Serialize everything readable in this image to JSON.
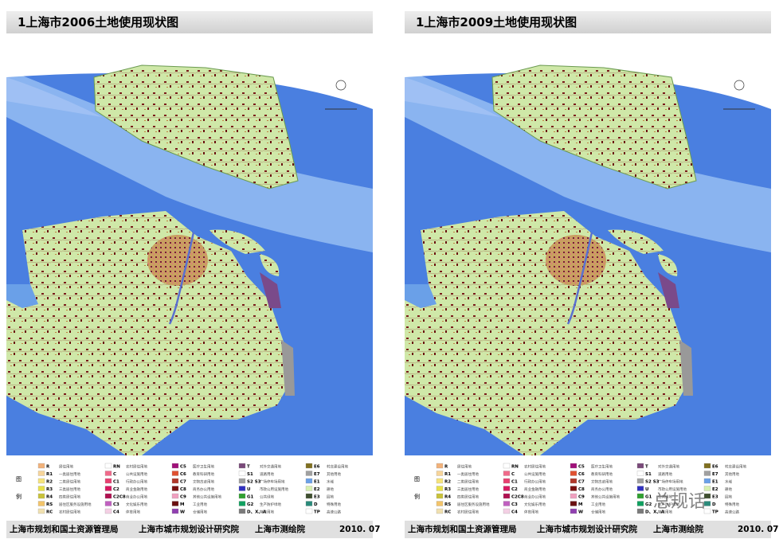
{
  "panels": [
    {
      "title": "1上海市2006土地使用现状图"
    },
    {
      "title": "1上海市2009土地使用现状图"
    }
  ],
  "legend": {
    "heading": [
      "图",
      "例"
    ],
    "items": [
      {
        "code": "R",
        "label": "居住用地",
        "color": "#f2b27a"
      },
      {
        "code": "R1",
        "label": "一类居住用地",
        "color": "#f7d59a"
      },
      {
        "code": "R2",
        "label": "二类居住用地",
        "color": "#f5e37a"
      },
      {
        "code": "R3",
        "label": "三类居住用地",
        "color": "#e8e04a"
      },
      {
        "code": "R4",
        "label": "四类居住用地",
        "color": "#c9c23a"
      },
      {
        "code": "RS",
        "label": "居住区服务设施用地",
        "color": "#f3c46a"
      },
      {
        "code": "RC",
        "label": "农村居住用地",
        "color": "#f0e0b0"
      },
      {
        "code": "RN",
        "label": "农村居住用地",
        "color": "#ffffff"
      },
      {
        "code": "C",
        "label": "公共设施用地",
        "color": "#f06a8a"
      },
      {
        "code": "C1",
        "label": "行政办公用地",
        "color": "#e84070"
      },
      {
        "code": "C2",
        "label": "商业金融用地",
        "color": "#d81860"
      },
      {
        "code": "C2C8",
        "label": "商业办公用地",
        "color": "#b01050"
      },
      {
        "code": "C3",
        "label": "文化娱乐用地",
        "color": "#c060c0"
      },
      {
        "code": "C4",
        "label": "体育用地",
        "color": "#f4d0e4"
      },
      {
        "code": "C5",
        "label": "医疗卫生用地",
        "color": "#a0107a"
      },
      {
        "code": "C6",
        "label": "教育科研用地",
        "color": "#e05030"
      },
      {
        "code": "C7",
        "label": "文物古迹用地",
        "color": "#b0382a"
      },
      {
        "code": "C8",
        "label": "商务办公用地",
        "color": "#7a1010"
      },
      {
        "code": "C9",
        "label": "其他公共设施用地",
        "color": "#f0a0c0"
      },
      {
        "code": "M",
        "label": "工业用地",
        "color": "#6a1010"
      },
      {
        "code": "W",
        "label": "仓储用地",
        "color": "#9040b0"
      },
      {
        "code": "T",
        "label": "对外交通用地",
        "color": "#7a4a7a"
      },
      {
        "code": "S1",
        "label": "道路用地",
        "color": "#ffffff"
      },
      {
        "code": "S2 S3",
        "label": "广场停车场用地",
        "color": "#a0a0a0"
      },
      {
        "code": "U",
        "label": "市政公用设施用地",
        "color": "#3030c0"
      },
      {
        "code": "G1",
        "label": "公共绿地",
        "color": "#30a030"
      },
      {
        "code": "G2",
        "label": "生产防护绿地",
        "color": "#10a060"
      },
      {
        "code": "D、X、A",
        "label": "特殊用地",
        "color": "#7a7a7a"
      },
      {
        "code": "E6",
        "label": "村庄建设用地",
        "color": "#807020"
      },
      {
        "code": "E7",
        "label": "其他用地",
        "color": "#a0a0a0"
      },
      {
        "code": "E1",
        "label": "水域",
        "color": "#6aa0e8"
      },
      {
        "code": "E2",
        "label": "耕地",
        "color": "#d8f0b0"
      },
      {
        "code": "E3",
        "label": "园地",
        "color": "#405030"
      },
      {
        "code": "D",
        "label": "特殊用地",
        "color": "#2a8a7a"
      },
      {
        "code": "TP",
        "label": "高速公路",
        "color": "#ffffff"
      }
    ]
  },
  "footer": {
    "org1": "上海市规划和国土资源管理局",
    "org2": "上海市城市规划设计研究院",
    "org3": "上海市测绘院",
    "date": "2010. 07"
  },
  "watermark": "总规话"
}
